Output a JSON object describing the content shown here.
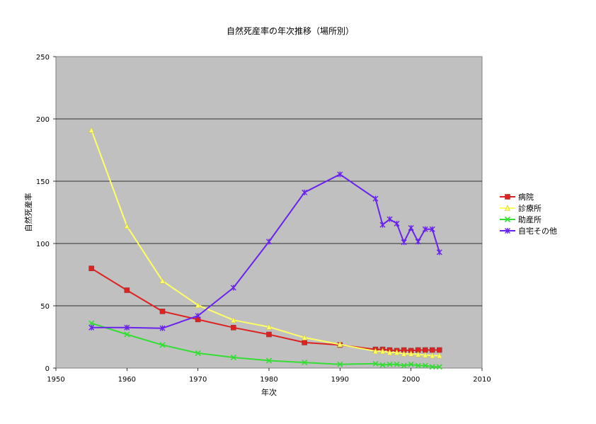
{
  "chart_data": {
    "type": "line",
    "title": "自然死産率の年次推移（場所別）",
    "xlabel": "年次",
    "ylabel": "自然死産率",
    "xlim": [
      1950,
      2010
    ],
    "ylim": [
      0,
      250
    ],
    "x_ticks": [
      "1950",
      "1960",
      "1970",
      "1980",
      "1990",
      "2000",
      "2010"
    ],
    "y_ticks": [
      "0",
      "50",
      "100",
      "150",
      "200",
      "250"
    ],
    "grid": "horizontal",
    "plot_background": "#c0c0c0",
    "legend_position": "right",
    "x": [
      1955,
      1960,
      1965,
      1970,
      1975,
      1980,
      1985,
      1990,
      1995,
      1996,
      1997,
      1998,
      1999,
      2000,
      2001,
      2002,
      2003,
      2004
    ],
    "series": [
      {
        "name": "病院",
        "color": "#dd2222",
        "marker": "square",
        "values": [
          80,
          62.5,
          45.5,
          39,
          32.5,
          27,
          20.5,
          18.5,
          15,
          15,
          14.5,
          14,
          14.5,
          14,
          14.5,
          14.5,
          14.5,
          14.5
        ]
      },
      {
        "name": "診療所",
        "color": "#ffff66",
        "marker": "triangle",
        "values": [
          191,
          114,
          70,
          50.5,
          38.5,
          33,
          24.5,
          19,
          13.5,
          13.5,
          12.5,
          12.5,
          11.5,
          11.5,
          11,
          10.5,
          10,
          10
        ]
      },
      {
        "name": "助産所",
        "color": "#33dd33",
        "marker": "x",
        "values": [
          36,
          27,
          18.5,
          12,
          8.5,
          6,
          4.5,
          3,
          3.5,
          2.5,
          3,
          3,
          2,
          3,
          2,
          2,
          1,
          1
        ]
      },
      {
        "name": "自宅その他",
        "color": "#6a22ee",
        "marker": "star",
        "values": [
          32.5,
          32.5,
          32,
          42,
          64.5,
          101.5,
          141,
          155.5,
          136,
          115,
          119.5,
          116,
          101,
          112.5,
          101.5,
          111.5,
          111.5,
          93
        ]
      }
    ]
  }
}
